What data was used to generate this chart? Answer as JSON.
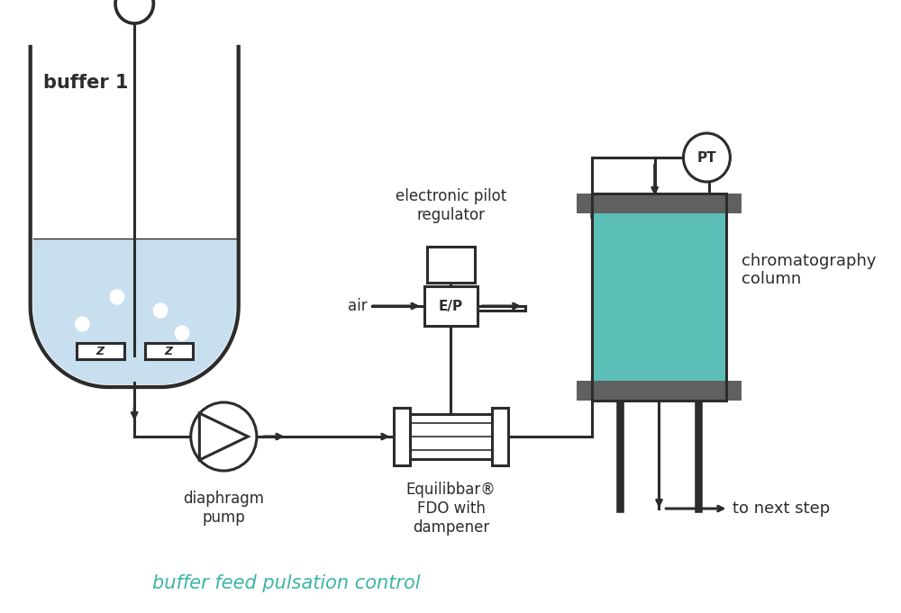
{
  "bg_color": "#ffffff",
  "line_color": "#2c2c2c",
  "liquid_color": "#c8dff0",
  "teal_color": "#5bbfb8",
  "gray_color": "#606060",
  "text_color": "#2c2c2c",
  "teal_text_color": "#3db5a8",
  "title": "buffer feed pulsation control",
  "label_buffer": "buffer 1",
  "label_pump": "diaphragm\npump",
  "label_fdo": "Equilibbar®\nFDO with\ndampener",
  "label_column": "chromatography\ncolumn",
  "label_air": "air",
  "label_ep": "E/P",
  "label_pt": "PT",
  "label_next": "to next step",
  "label_elec": "electronic pilot\nregulator"
}
